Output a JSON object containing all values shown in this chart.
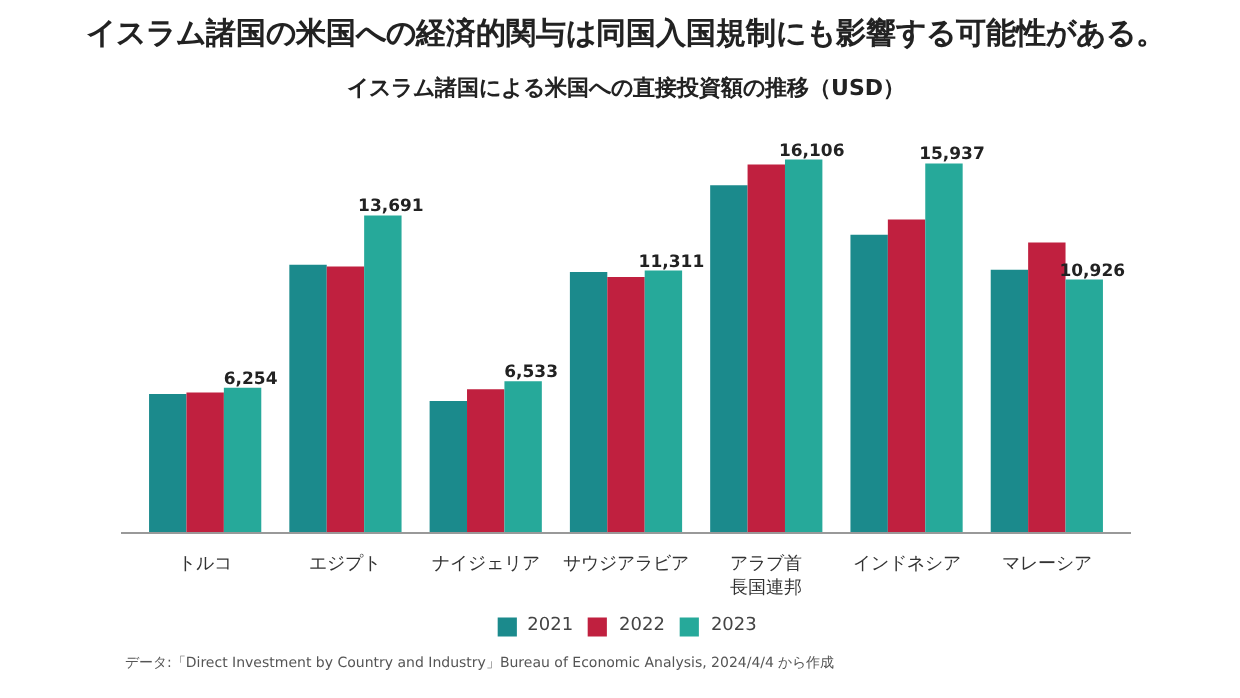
{
  "chart_data": {
    "type": "bar",
    "title": "イスラム諸国の米国への経済的関与は同国入国規制にも影響する可能性がある。",
    "subtitle": "イスラム諸国による米国への直接投資額の推移（USD）",
    "categories": [
      "トルコ",
      "エジプト",
      "ナイジェリア",
      "サウジアラビア",
      "アラブ首長国連邦",
      "インドネシア",
      "マレーシア"
    ],
    "series": [
      {
        "name": "2021",
        "color": "#1b8a8c",
        "values": [
          5990,
          11560,
          5680,
          11250,
          15000,
          12860,
          11350
        ]
      },
      {
        "name": "2022",
        "color": "#c0203f",
        "values": [
          6050,
          11490,
          6190,
          11040,
          15890,
          13520,
          12520
        ]
      },
      {
        "name": "2023",
        "color": "#26a99a",
        "values": [
          6254,
          13691,
          6533,
          11311,
          16106,
          15937,
          10926
        ],
        "value_labels": [
          "6,254",
          "13,691",
          "6,533",
          "11,311",
          "16,106",
          "15,937",
          "10,926"
        ]
      }
    ],
    "legend": "bottom",
    "annotations": [
      "データ:「Direct Investment by Country and Industry」Bureau of Economic Analysis, 2024/4/4 から作成"
    ]
  }
}
